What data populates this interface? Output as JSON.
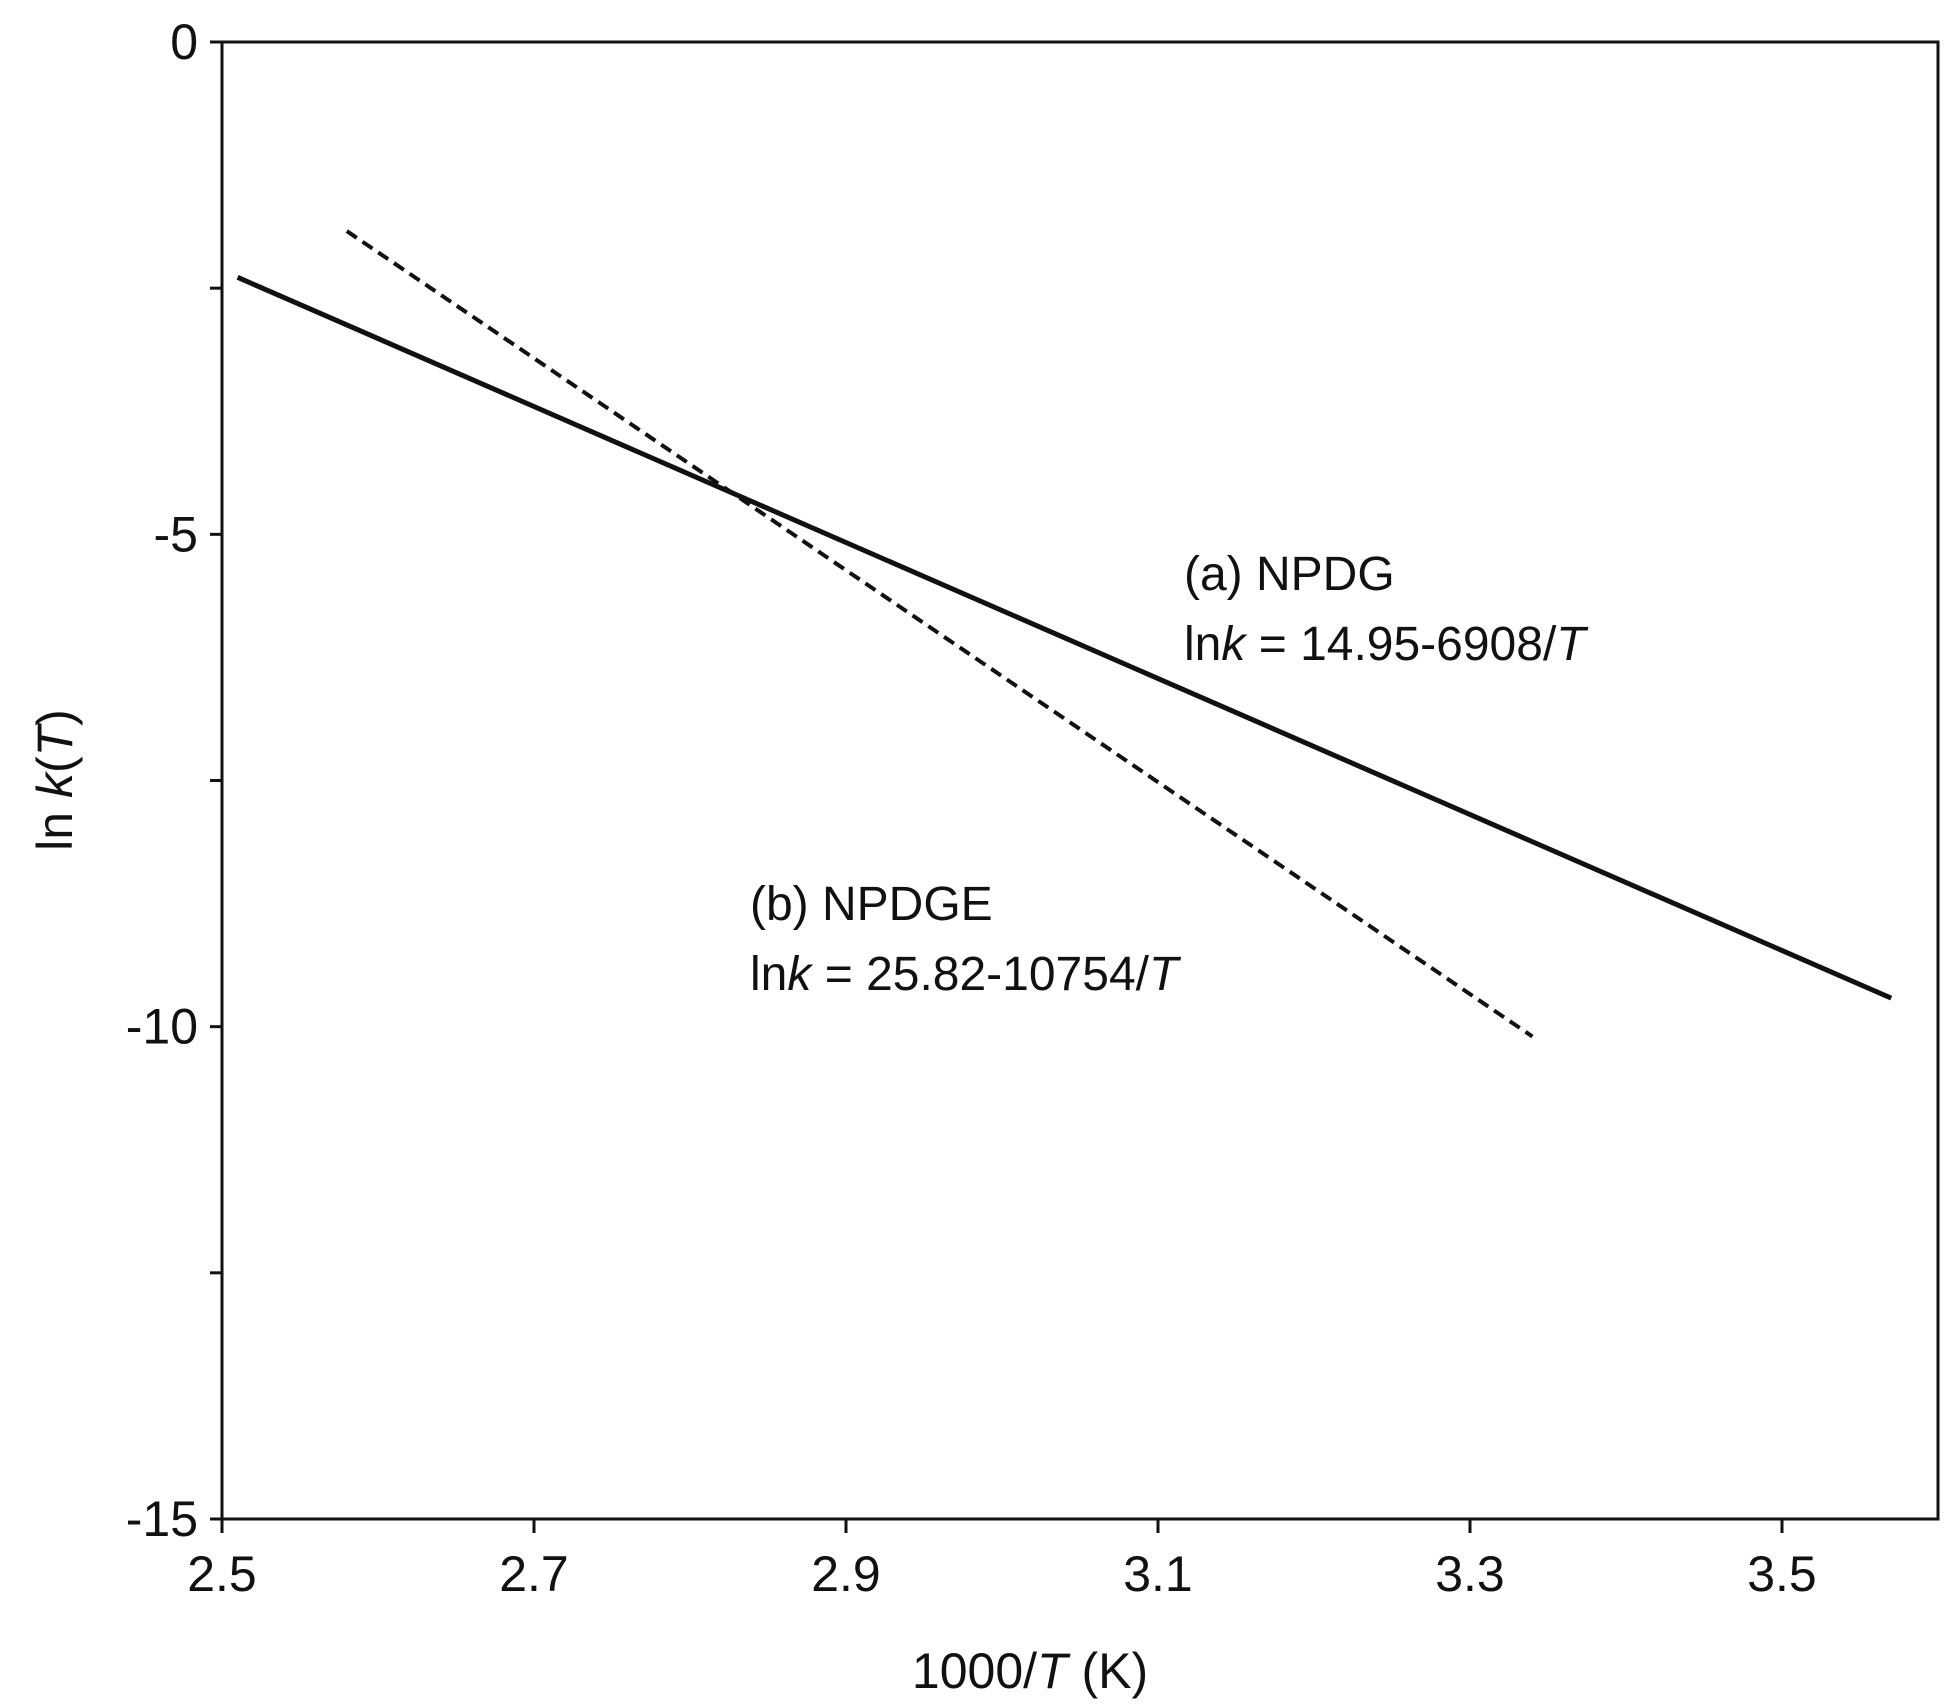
{
  "chart_data": {
    "type": "line",
    "xlabel_parts": [
      "1000/",
      "T",
      " (K)"
    ],
    "ylabel_parts": [
      "ln ",
      "k",
      "(",
      "T",
      ")"
    ],
    "xlim": [
      2.5,
      3.6
    ],
    "ylim": [
      -15,
      0
    ],
    "xticks": [
      2.5,
      2.7,
      2.9,
      3.1,
      3.3,
      3.5
    ],
    "xtick_labels": [
      "2.5",
      "2.7",
      "2.9",
      "3.1",
      "3.3",
      "3.5"
    ],
    "yticks": [
      0,
      -5,
      -10,
      -15
    ],
    "ytick_labels": [
      "0",
      "-5",
      "-10",
      "-15"
    ],
    "y_minor_ticks": [
      -2.5,
      -7.5,
      -12.5
    ],
    "grid": false,
    "series": [
      {
        "name": "(a) NPDG",
        "equation_parts": [
          "ln",
          "k",
          " = 14.95-6908/",
          "T"
        ],
        "style": "solid",
        "color": "#111111",
        "x": [
          2.51,
          3.57
        ],
        "y": [
          -2.39,
          -9.71
        ]
      },
      {
        "name": "(b) NPDGE",
        "equation_parts": [
          "ln",
          "k",
          " = 25.82-10754/",
          "T"
        ],
        "style": "dashed",
        "color": "#111111",
        "x": [
          2.58,
          3.34
        ],
        "y": [
          -1.92,
          -10.1
        ]
      }
    ]
  }
}
